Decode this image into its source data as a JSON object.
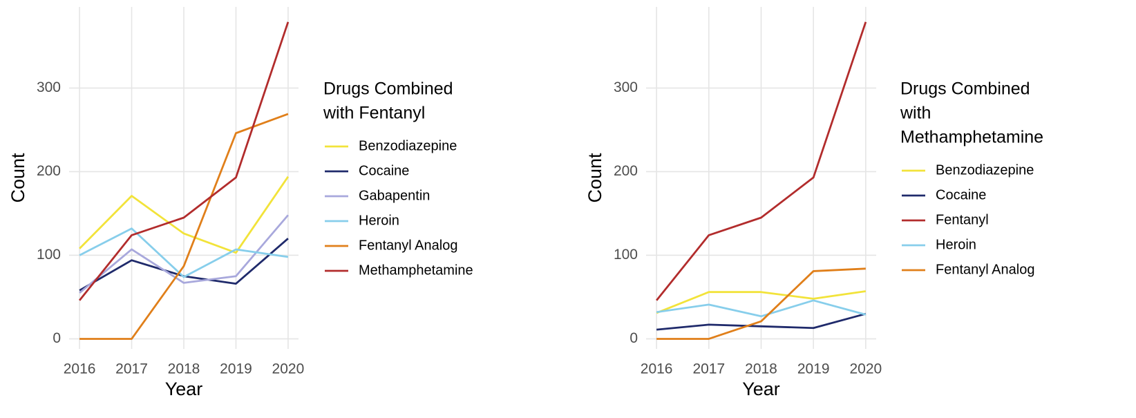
{
  "chart_data": [
    {
      "type": "line",
      "x_label": "Year",
      "y_label": "Count",
      "legend_title": [
        "Drugs Combined",
        "with Fentanyl"
      ],
      "x": [
        2016,
        2017,
        2018,
        2019,
        2020
      ],
      "xlim": [
        2015.8,
        2020.2
      ],
      "xticks": [
        2016,
        2017,
        2018,
        2019,
        2020
      ],
      "ylim": [
        -12,
        397
      ],
      "yticks": [
        0,
        100,
        200,
        300
      ],
      "grid": true,
      "legend": "right",
      "series": [
        {
          "name": "Benzodiazepine",
          "color": "#f2e33a",
          "values": [
            108,
            171,
            126,
            103,
            194
          ]
        },
        {
          "name": "Cocaine",
          "color": "#1f2a6b",
          "values": [
            58,
            94,
            75,
            66,
            120
          ]
        },
        {
          "name": "Gabapentin",
          "color": "#a8a8dc",
          "values": [
            55,
            107,
            67,
            75,
            148
          ]
        },
        {
          "name": "Heroin",
          "color": "#87ceeb",
          "values": [
            100,
            132,
            74,
            107,
            98
          ]
        },
        {
          "name": "Fentanyl Analog",
          "color": "#e07f1a",
          "values": [
            0,
            0,
            87,
            246,
            269
          ]
        },
        {
          "name": "Methamphetamine",
          "color": "#b22c2c",
          "values": [
            46,
            124,
            145,
            193,
            379
          ]
        }
      ]
    },
    {
      "type": "line",
      "x_label": "Year",
      "y_label": "Count",
      "legend_title": [
        "Drugs Combined",
        "with",
        "Methamphetamine"
      ],
      "x": [
        2016,
        2017,
        2018,
        2019,
        2020
      ],
      "xlim": [
        2015.8,
        2020.2
      ],
      "xticks": [
        2016,
        2017,
        2018,
        2019,
        2020
      ],
      "ylim": [
        -12,
        397
      ],
      "yticks": [
        0,
        100,
        200,
        300
      ],
      "grid": true,
      "legend": "right",
      "series": [
        {
          "name": "Benzodiazepine",
          "color": "#f2e33a",
          "values": [
            31,
            56,
            56,
            48,
            57
          ]
        },
        {
          "name": "Cocaine",
          "color": "#1f2a6b",
          "values": [
            11,
            17,
            15,
            13,
            30
          ]
        },
        {
          "name": "Fentanyl",
          "color": "#b22c2c",
          "values": [
            46,
            124,
            145,
            193,
            379
          ]
        },
        {
          "name": "Heroin",
          "color": "#87ceeb",
          "values": [
            32,
            41,
            27,
            46,
            29
          ]
        },
        {
          "name": "Fentanyl Analog",
          "color": "#e07f1a",
          "values": [
            0,
            0,
            21,
            81,
            84
          ]
        }
      ]
    }
  ]
}
